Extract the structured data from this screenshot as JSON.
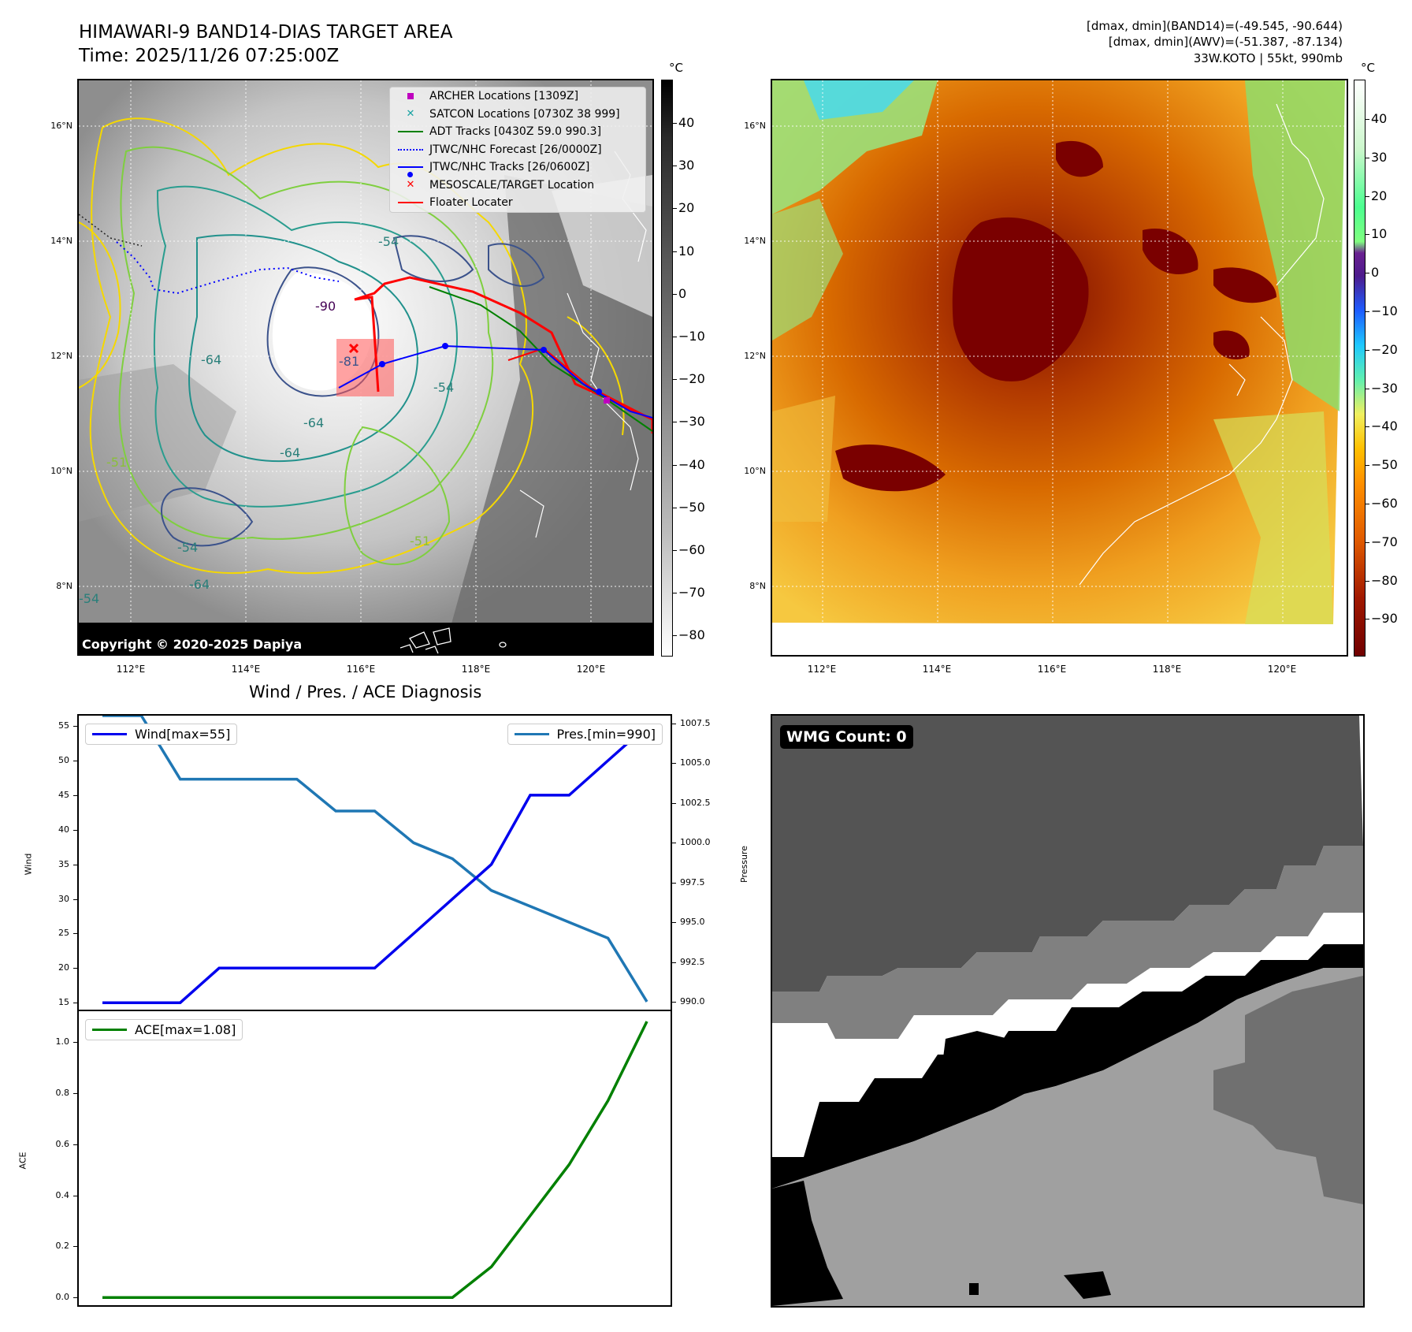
{
  "header": {
    "title_line1": "HIMAWARI-9 BAND14-DIAS TARGET AREA",
    "title_line2": "Time: 2025/11/26 07:25:00Z",
    "info_line1": "[dmax, dmin](BAND14)=(-49.545, -90.644)",
    "info_line2": "[dmax, dmin](AWV)=(-51.387, -87.134)",
    "info_line3": "33W.KOTO | 55kt, 990mb"
  },
  "map": {
    "lat_labels": [
      "16°N",
      "14°N",
      "12°N",
      "10°N",
      "8°N"
    ],
    "lon_labels": [
      "112°E",
      "114°E",
      "116°E",
      "118°E",
      "120°E"
    ],
    "contour_labels": [
      "-90",
      "-81",
      "-64",
      "-64",
      "-64",
      "-54",
      "-54",
      "-54",
      "-51",
      "-64",
      "-51",
      "-54"
    ],
    "copyright": "Copyright © 2020-2025 Dapiya",
    "legend": [
      {
        "label": "ARCHER Locations [1309Z]",
        "symbol": "square",
        "color": "#bf00bf"
      },
      {
        "label": "SATCON Locations [0730Z 38 999]",
        "symbol": "x",
        "color": "#17a2a2"
      },
      {
        "label": "ADT Tracks [0430Z 59.0 990.3]",
        "symbol": "line",
        "color": "#008000"
      },
      {
        "label": "JTWC/NHC Forecast [26/0000Z]",
        "symbol": "dotted",
        "color": "#0000ff"
      },
      {
        "label": "JTWC/NHC Tracks [26/0600Z]",
        "symbol": "line-dot",
        "color": "#0000ff"
      },
      {
        "label": "MESOSCALE/TARGET Location",
        "symbol": "x",
        "color": "#ff0000"
      },
      {
        "label": "Floater Locater",
        "symbol": "line",
        "color": "#ff0000"
      }
    ]
  },
  "colorbar_gray": {
    "unit": "°C",
    "ticks": [
      "40",
      "30",
      "20",
      "10",
      "0",
      "−10",
      "−20",
      "−30",
      "−40",
      "−50",
      "−60",
      "−70",
      "−80"
    ]
  },
  "colorbar_color": {
    "unit": "°C",
    "ticks": [
      "40",
      "30",
      "20",
      "10",
      "0",
      "−10",
      "−20",
      "−30",
      "−40",
      "−50",
      "−60",
      "−70",
      "−80",
      "−90"
    ]
  },
  "wmg": {
    "label": "WMG Count: 0"
  },
  "chart_data": [
    {
      "type": "line",
      "title": "Wind / Pres. / ACE Diagnosis",
      "ylabel": "Wind",
      "y2label": "Pressure",
      "ylim": [
        14,
        56.5
      ],
      "y2lim": [
        989.5,
        1008
      ],
      "y_ticks": [
        "55",
        "50",
        "45",
        "40",
        "35",
        "30",
        "25",
        "20",
        "15"
      ],
      "y2_ticks": [
        "1007.5",
        "1005.0",
        "1002.5",
        "1000.0",
        "997.5",
        "995.0",
        "992.5",
        "990.0"
      ],
      "x": [
        0,
        1,
        2,
        3,
        4,
        5,
        6,
        7,
        8,
        9,
        10,
        11,
        12,
        13,
        14
      ],
      "series": [
        {
          "name": "Wind[max=55]",
          "axis": "left",
          "color": "#0000ee",
          "values": [
            15,
            15,
            15,
            20,
            20,
            20,
            20,
            20,
            25,
            30,
            35,
            45,
            45,
            50,
            55
          ]
        },
        {
          "name": "Pres.[min=990]",
          "axis": "right",
          "color": "#1f77b4",
          "values": [
            1008,
            1008,
            1004,
            1004,
            1004,
            1004,
            1002,
            1002,
            1000,
            999,
            997,
            996,
            995,
            994,
            990
          ]
        }
      ]
    },
    {
      "type": "line",
      "ylabel": "ACE",
      "ylim": [
        -0.03,
        1.12
      ],
      "y_ticks": [
        "1.0",
        "0.8",
        "0.6",
        "0.4",
        "0.2",
        "0.0"
      ],
      "x": [
        0,
        1,
        2,
        3,
        4,
        5,
        6,
        7,
        8,
        9,
        10,
        11,
        12,
        13,
        14
      ],
      "series": [
        {
          "name": "ACE[max=1.08]",
          "color": "#008000",
          "values": [
            0,
            0,
            0,
            0,
            0,
            0,
            0,
            0,
            0,
            0,
            0.12,
            0.32,
            0.52,
            0.77,
            1.08
          ]
        }
      ]
    }
  ]
}
